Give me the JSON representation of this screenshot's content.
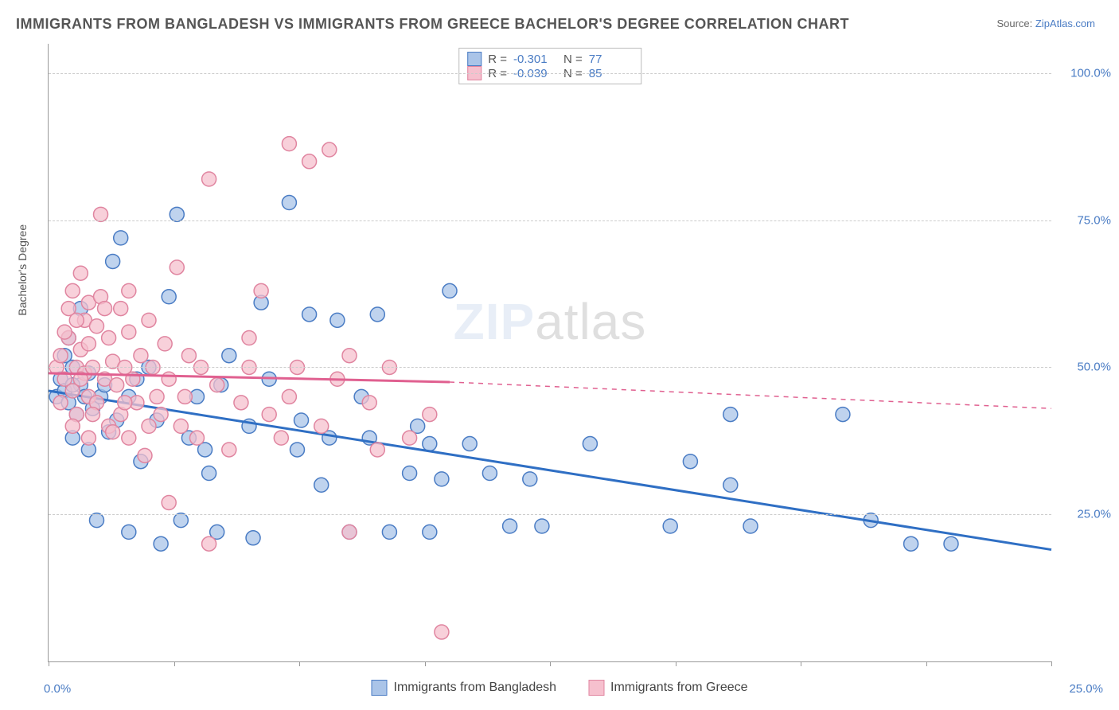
{
  "title": "IMMIGRANTS FROM BANGLADESH VS IMMIGRANTS FROM GREECE BACHELOR'S DEGREE CORRELATION CHART",
  "source_prefix": "Source: ",
  "source_link": "ZipAtlas.com",
  "watermark_zip": "ZIP",
  "watermark_atlas": "atlas",
  "y_axis_label": "Bachelor's Degree",
  "x_axis": {
    "min": 0,
    "max": 25,
    "unit": "%",
    "ticks": [
      0,
      3.125,
      6.25,
      9.375,
      12.5,
      15.625,
      18.75,
      21.875,
      25
    ],
    "labeled": {
      "0": "0.0%",
      "25": "25.0%"
    }
  },
  "y_axis": {
    "min": 0,
    "max": 105,
    "unit": "%",
    "gridlines": [
      25,
      50,
      75,
      100
    ],
    "labels": {
      "25": "25.0%",
      "50": "50.0%",
      "75": "75.0%",
      "100": "100.0%"
    }
  },
  "legend_top": [
    {
      "swatch_fill": "#aac4e8",
      "swatch_stroke": "#4a7cc4",
      "r_label": "R = ",
      "r_value": "-0.301",
      "n_label": "N = ",
      "n_value": "77"
    },
    {
      "swatch_fill": "#f6c0ce",
      "swatch_stroke": "#e085a0",
      "r_label": "R = ",
      "r_value": "-0.039",
      "n_label": "N = ",
      "n_value": "85"
    }
  ],
  "legend_bottom": [
    {
      "swatch_fill": "#aac4e8",
      "swatch_stroke": "#4a7cc4",
      "label": "Immigrants from Bangladesh"
    },
    {
      "swatch_fill": "#f6c0ce",
      "swatch_stroke": "#e085a0",
      "label": "Immigrants from Greece"
    }
  ],
  "series": [
    {
      "name": "bangladesh",
      "point_fill": "#aac4e8",
      "point_stroke": "#4a7cc4",
      "point_opacity": 0.75,
      "point_radius": 9,
      "trend": {
        "color": "#2f6fc4",
        "width": 3,
        "start": [
          0,
          46
        ],
        "solid_end": [
          25,
          19
        ],
        "dashed_end": null
      },
      "points": [
        [
          0.2,
          45
        ],
        [
          0.3,
          48
        ],
        [
          0.4,
          46
        ],
        [
          0.5,
          44
        ],
        [
          0.6,
          50
        ],
        [
          0.7,
          42
        ],
        [
          0.8,
          47
        ],
        [
          0.9,
          45
        ],
        [
          1.0,
          49
        ],
        [
          1.1,
          43
        ],
        [
          0.5,
          55
        ],
        [
          0.6,
          38
        ],
        [
          0.8,
          60
        ],
        [
          1.0,
          36
        ],
        [
          1.2,
          24
        ],
        [
          1.3,
          45
        ],
        [
          1.5,
          39
        ],
        [
          1.6,
          68
        ],
        [
          1.8,
          72
        ],
        [
          2.0,
          45
        ],
        [
          2.0,
          22
        ],
        [
          2.2,
          48
        ],
        [
          2.5,
          50
        ],
        [
          2.7,
          41
        ],
        [
          2.8,
          20
        ],
        [
          3.0,
          62
        ],
        [
          3.2,
          76
        ],
        [
          3.3,
          24
        ],
        [
          3.5,
          38
        ],
        [
          3.7,
          45
        ],
        [
          4.0,
          32
        ],
        [
          4.2,
          22
        ],
        [
          4.5,
          52
        ],
        [
          5.0,
          40
        ],
        [
          5.1,
          21
        ],
        [
          5.3,
          61
        ],
        [
          5.5,
          48
        ],
        [
          6.0,
          78
        ],
        [
          6.2,
          36
        ],
        [
          6.5,
          59
        ],
        [
          6.8,
          30
        ],
        [
          7.0,
          38
        ],
        [
          7.2,
          58
        ],
        [
          7.5,
          22
        ],
        [
          7.8,
          45
        ],
        [
          8.0,
          38
        ],
        [
          8.2,
          59
        ],
        [
          8.5,
          22
        ],
        [
          9.0,
          32
        ],
        [
          9.2,
          40
        ],
        [
          9.5,
          22
        ],
        [
          9.5,
          37
        ],
        [
          9.8,
          31
        ],
        [
          10.0,
          63
        ],
        [
          10.5,
          37
        ],
        [
          11.0,
          32
        ],
        [
          11.5,
          23
        ],
        [
          12.0,
          31
        ],
        [
          12.3,
          23
        ],
        [
          13.5,
          37
        ],
        [
          15.5,
          23
        ],
        [
          16.0,
          34
        ],
        [
          17.0,
          42
        ],
        [
          17.0,
          30
        ],
        [
          17.5,
          23
        ],
        [
          19.8,
          42
        ],
        [
          20.5,
          24
        ],
        [
          21.5,
          20
        ],
        [
          22.5,
          20
        ],
        [
          0.4,
          52
        ],
        [
          0.6,
          47
        ],
        [
          1.4,
          47
        ],
        [
          1.7,
          41
        ],
        [
          2.3,
          34
        ],
        [
          3.9,
          36
        ],
        [
          4.3,
          47
        ],
        [
          6.3,
          41
        ]
      ]
    },
    {
      "name": "greece",
      "point_fill": "#f6c0ce",
      "point_stroke": "#e085a0",
      "point_opacity": 0.75,
      "point_radius": 9,
      "trend": {
        "color": "#e06090",
        "width": 3,
        "start": [
          0,
          49
        ],
        "solid_end": [
          10,
          47.5
        ],
        "dashed_end": [
          25,
          43
        ]
      },
      "points": [
        [
          0.2,
          50
        ],
        [
          0.3,
          52
        ],
        [
          0.4,
          48
        ],
        [
          0.5,
          55
        ],
        [
          0.5,
          60
        ],
        [
          0.6,
          46
        ],
        [
          0.6,
          63
        ],
        [
          0.7,
          50
        ],
        [
          0.7,
          42
        ],
        [
          0.8,
          53
        ],
        [
          0.8,
          66
        ],
        [
          0.9,
          49
        ],
        [
          0.9,
          58
        ],
        [
          1.0,
          45
        ],
        [
          1.0,
          54
        ],
        [
          1.0,
          38
        ],
        [
          1.0,
          61
        ],
        [
          1.1,
          50
        ],
        [
          1.2,
          57
        ],
        [
          1.2,
          44
        ],
        [
          1.3,
          62
        ],
        [
          1.3,
          76
        ],
        [
          1.4,
          48
        ],
        [
          1.5,
          40
        ],
        [
          1.5,
          55
        ],
        [
          1.6,
          51
        ],
        [
          1.7,
          47
        ],
        [
          1.8,
          42
        ],
        [
          1.8,
          60
        ],
        [
          1.9,
          50
        ],
        [
          2.0,
          56
        ],
        [
          2.0,
          38
        ],
        [
          2.0,
          63
        ],
        [
          2.1,
          48
        ],
        [
          2.2,
          44
        ],
        [
          2.3,
          52
        ],
        [
          2.4,
          35
        ],
        [
          2.5,
          40
        ],
        [
          2.5,
          58
        ],
        [
          2.6,
          50
        ],
        [
          2.7,
          45
        ],
        [
          2.8,
          42
        ],
        [
          2.9,
          54
        ],
        [
          3.0,
          27
        ],
        [
          3.0,
          48
        ],
        [
          3.2,
          67
        ],
        [
          3.3,
          40
        ],
        [
          3.4,
          45
        ],
        [
          3.5,
          52
        ],
        [
          3.7,
          38
        ],
        [
          3.8,
          50
        ],
        [
          4.0,
          20
        ],
        [
          4.0,
          82
        ],
        [
          4.2,
          47
        ],
        [
          4.5,
          36
        ],
        [
          4.8,
          44
        ],
        [
          5.0,
          55
        ],
        [
          5.0,
          50
        ],
        [
          5.3,
          63
        ],
        [
          5.5,
          42
        ],
        [
          5.8,
          38
        ],
        [
          6.0,
          88
        ],
        [
          6.0,
          45
        ],
        [
          6.2,
          50
        ],
        [
          6.5,
          85
        ],
        [
          6.8,
          40
        ],
        [
          7.0,
          87
        ],
        [
          7.2,
          48
        ],
        [
          7.5,
          52
        ],
        [
          7.5,
          22
        ],
        [
          8.0,
          44
        ],
        [
          8.2,
          36
        ],
        [
          8.5,
          50
        ],
        [
          9.0,
          38
        ],
        [
          9.5,
          42
        ],
        [
          9.8,
          5
        ],
        [
          0.3,
          44
        ],
        [
          0.4,
          56
        ],
        [
          0.6,
          40
        ],
        [
          0.7,
          58
        ],
        [
          0.8,
          48
        ],
        [
          1.1,
          42
        ],
        [
          1.4,
          60
        ],
        [
          1.6,
          39
        ],
        [
          1.9,
          44
        ]
      ]
    }
  ],
  "colors": {
    "title": "#555555",
    "axis": "#999999",
    "grid": "#cccccc",
    "tick_label": "#4a7cc4",
    "background": "#ffffff"
  }
}
